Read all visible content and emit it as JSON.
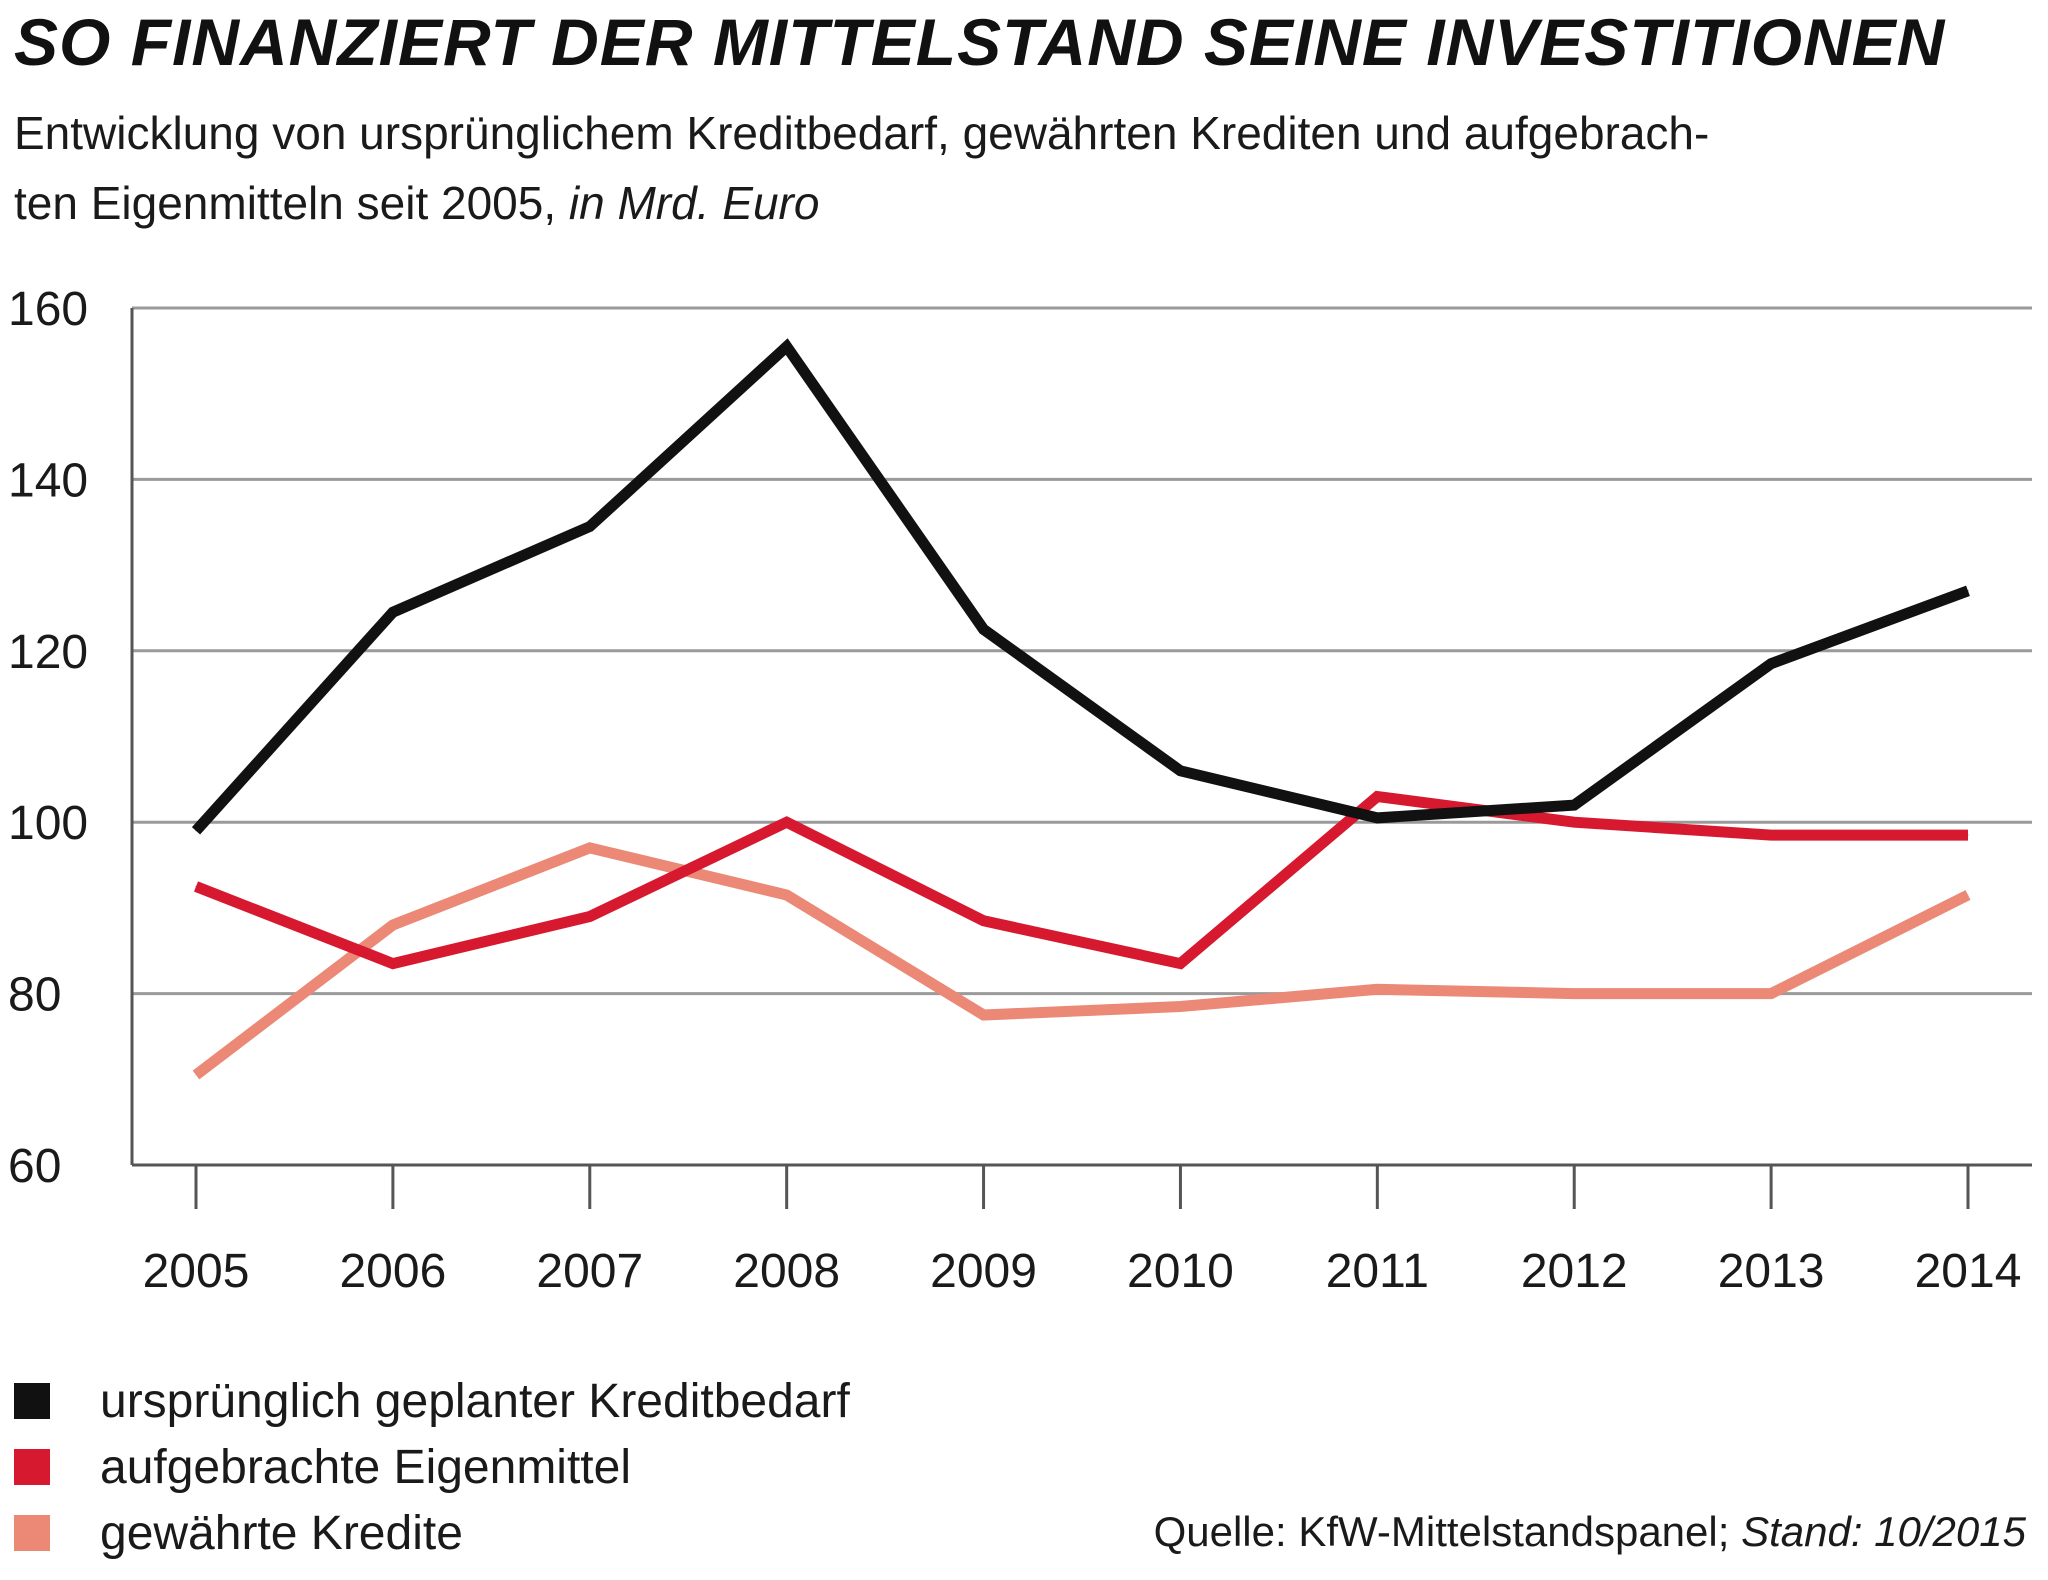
{
  "title": "SO FINANZIERT DER MITTELSTAND SEINE INVESTITIONEN",
  "subtitle": {
    "line1": "Entwicklung von ursprünglichem Kreditbedarf, gewährten Krediten und aufgebrach-",
    "line2_prefix": "ten Eigenmitteln seit 2005, ",
    "unit": "in Mrd. Euro"
  },
  "source": {
    "prefix": "Quelle: KfW-Mittelstandspanel; ",
    "stand": "Stand: 10/2015"
  },
  "chart_data": {
    "type": "line",
    "x": [
      "2005",
      "2006",
      "2007",
      "2008",
      "2009",
      "2010",
      "2011",
      "2012",
      "2013",
      "2014"
    ],
    "ylim": [
      60,
      160
    ],
    "yticks": [
      "60",
      "80",
      "100",
      "120",
      "140",
      "160"
    ],
    "grid": true,
    "legend_position": "bottom-left",
    "series": [
      {
        "name": "ursprünglich geplanter Kreditbedarf",
        "color": "#111111",
        "values": [
          99,
          124.5,
          134.5,
          155.5,
          122.5,
          106,
          100.5,
          102,
          118.5,
          127
        ]
      },
      {
        "name": "aufgebrachte Eigenmittel",
        "color": "#d7192f",
        "values": [
          92.5,
          83.5,
          89,
          100,
          88.5,
          83.5,
          103,
          100,
          98.5,
          98.5
        ]
      },
      {
        "name": "gewährte Kredite",
        "color": "#ec8876",
        "values": [
          70.5,
          88,
          97,
          91.5,
          77.5,
          78.5,
          80.5,
          80,
          80,
          91.5
        ]
      }
    ]
  }
}
